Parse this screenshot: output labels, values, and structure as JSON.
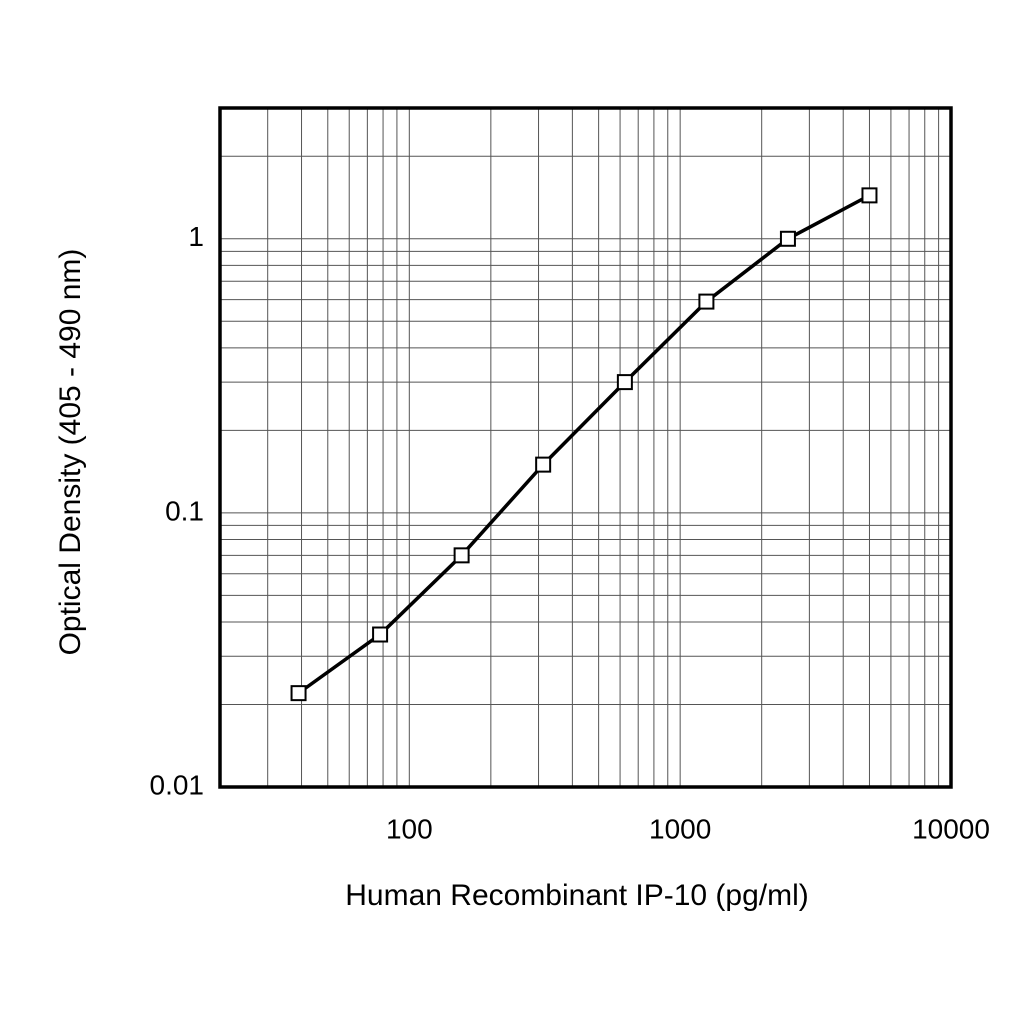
{
  "chart_data": {
    "type": "line",
    "xscale": "log",
    "yscale": "log",
    "xlabel": "Human Recombinant IP-10 (pg/ml)",
    "ylabel": "Optical Density (405 - 490 nm)",
    "x": [
      39,
      78,
      156,
      312,
      625,
      1250,
      2500,
      5000
    ],
    "series": [
      {
        "color": "#000000",
        "values": [
          0.022,
          0.036,
          0.07,
          0.15,
          0.3,
          0.59,
          1.0,
          1.44
        ]
      }
    ],
    "xlim": [
      20,
      10000
    ],
    "ylim": [
      0.01,
      3
    ],
    "xticks": [
      100,
      1000,
      10000
    ],
    "yticks": [
      0.01,
      0.1,
      1
    ],
    "xminorticks": [
      30,
      40,
      50,
      60,
      70,
      80,
      90,
      200,
      300,
      400,
      500,
      600,
      700,
      800,
      900,
      2000,
      3000,
      4000,
      5000,
      6000,
      7000,
      8000,
      9000
    ],
    "yminorticks": [
      0.02,
      0.03,
      0.04,
      0.05,
      0.06,
      0.07,
      0.08,
      0.09,
      0.2,
      0.3,
      0.4,
      0.5,
      0.6,
      0.7,
      0.8,
      0.9,
      2
    ],
    "grid": true
  }
}
